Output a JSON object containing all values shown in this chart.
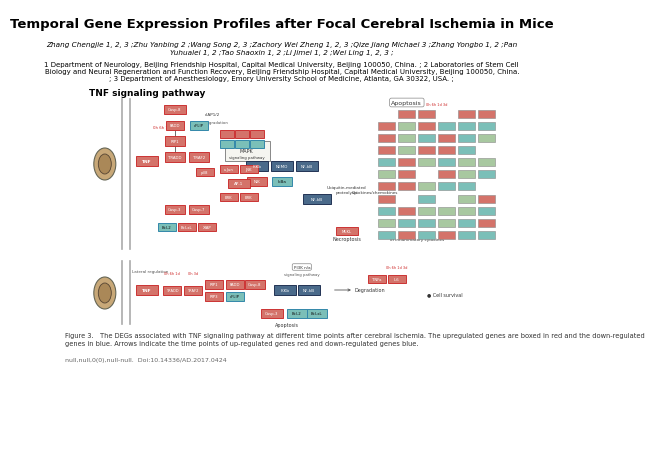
{
  "title": "Temporal Gene Expression Profiles after Focal Cerebral Ischemia in Mice",
  "authors_line1": "Zhang Chengjie 1, 2, 3 ;Zhu Yanbing 2 ;Wang Song 2, 3 ;Zachory Wei Zheng 1, 2, 3 ;Qize Jiang Michael 3 ;Zhang Yongbo 1, 2 ;Pan",
  "authors_line2": "Yuhualei 1, 2 ;Tao Shaoxin 1, 2 ;Li Jimei 1, 2 ;Wei Ling 1, 2, 3 ;",
  "affil1": "1 Department of Neurology, Beijing Friendship Hospital, Capital Medical University, Beijing 100050, China. ; 2 Laboratories of Stem Cell",
  "affil2": "Biology and Neural Regeneration and Function Recovery, Beijing Friendship Hospital, Capital Medical University, Beijing 100050, China.",
  "affil3": "; 3 Department of Anesthesiology, Emory University School of Medicine, Atlanta, GA 30322, USA. ;",
  "pathway_label": "TNF signaling pathway",
  "fig_caption1": "Figure 3.   The DEGs associated with TNF signaling pathway at different time points after cerebral ischemia. The upregulated genes are boxed in red and the down-regulated",
  "fig_caption2": "genes in blue. Arrows indicate the time points of up-regulated genes red and down-regulated genes blue.",
  "doi": "null,null,0(0),null-null.  Doi:10.14336/AD.2017.0424",
  "bg_color": "#ffffff",
  "red_box": "#d4736a",
  "teal_box": "#7bbfb8",
  "green_box": "#a8c8a0",
  "orange_box": "#d4956a",
  "dark_box": "#4a6a8a"
}
